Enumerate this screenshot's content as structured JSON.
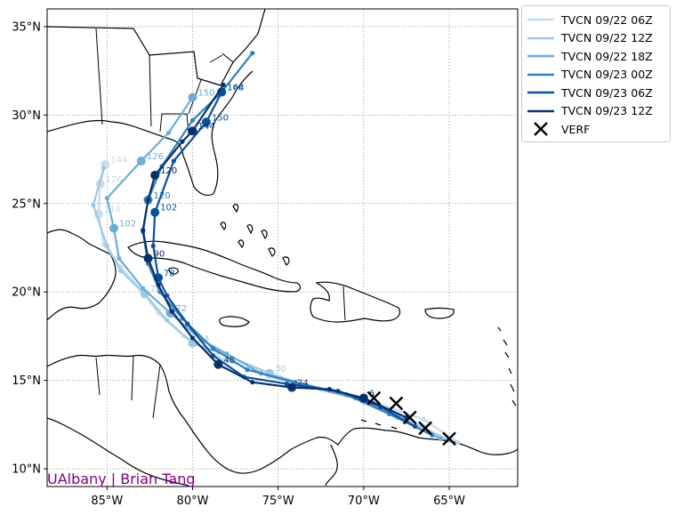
{
  "chart_data": {
    "type": "map-tracks",
    "title": "",
    "xlim": [
      -88.5,
      -61
    ],
    "ylim": [
      9,
      36
    ],
    "x_ticks": [
      -85,
      -80,
      -75,
      -70,
      -65
    ],
    "x_tick_labels": [
      "85°W",
      "80°W",
      "75°W",
      "70°W",
      "65°W"
    ],
    "y_ticks": [
      10,
      15,
      20,
      25,
      30,
      35
    ],
    "y_tick_labels": [
      "10°N",
      "15°N",
      "20°N",
      "25°N",
      "30°N",
      "35°N"
    ],
    "grid": true,
    "legend_position": "outside-top-right",
    "credit": "UAlbany | Brian Tang",
    "series": [
      {
        "name": "TVCN 09/22 06Z",
        "color": "#c6dbef",
        "points": [
          [
            -64.5,
            11.5
          ],
          [
            -66.5,
            12.8
          ],
          [
            -69.5,
            13.8
          ],
          [
            -72.5,
            14.5
          ],
          [
            -75.5,
            15.2
          ],
          [
            -78.5,
            16.3
          ],
          [
            -80.5,
            17.5
          ],
          [
            -82.0,
            18.8
          ],
          [
            -83.0,
            20.1
          ],
          [
            -84.2,
            21.4
          ],
          [
            -85.2,
            22.7
          ],
          [
            -85.5,
            24.4
          ],
          [
            -85.4,
            26.1
          ],
          [
            -85.1,
            27.2
          ]
        ],
        "labels": [
          {
            "idx": 11,
            "text": "114"
          },
          {
            "idx": 12,
            "text": "126"
          },
          {
            "idx": 13,
            "text": "144"
          }
        ]
      },
      {
        "name": "TVCN 09/22 12Z",
        "color": "#9ecae1",
        "points": [
          [
            -65.0,
            11.6
          ],
          [
            -67.5,
            12.8
          ],
          [
            -70.0,
            13.9
          ],
          [
            -73.0,
            14.6
          ],
          [
            -75.5,
            15.4
          ],
          [
            -78.5,
            16.6
          ],
          [
            -80.0,
            17.1
          ],
          [
            -81.5,
            18.4
          ],
          [
            -82.8,
            19.9
          ],
          [
            -84.2,
            21.2
          ],
          [
            -85.0,
            22.6
          ],
          [
            -85.8,
            24.9
          ],
          [
            -85.2,
            27.0
          ]
        ],
        "labels": [
          {
            "idx": 2,
            "text": "6"
          },
          {
            "idx": 4,
            "text": "30"
          },
          {
            "idx": 6,
            "text": "54"
          },
          {
            "idx": 8,
            "text": "78"
          }
        ]
      },
      {
        "name": "TVCN 09/22 18Z",
        "color": "#6baed6",
        "points": [
          [
            -65.5,
            11.7
          ],
          [
            -68.0,
            12.9
          ],
          [
            -70.5,
            14.0
          ],
          [
            -73.5,
            14.7
          ],
          [
            -76.0,
            15.4
          ],
          [
            -78.0,
            16.5
          ],
          [
            -79.5,
            17.3
          ],
          [
            -81.3,
            18.8
          ],
          [
            -82.9,
            20.2
          ],
          [
            -84.3,
            21.9
          ],
          [
            -84.6,
            23.6
          ],
          [
            -85.0,
            25.3
          ],
          [
            -83.0,
            27.4
          ],
          [
            -81.4,
            29.0
          ],
          [
            -80.0,
            31.0
          ]
        ],
        "labels": [
          {
            "idx": 7,
            "text": "72"
          },
          {
            "idx": 10,
            "text": "102"
          },
          {
            "idx": 12,
            "text": "126"
          },
          {
            "idx": 14,
            "text": "150"
          }
        ]
      },
      {
        "name": "TVCN 09/23 00Z",
        "color": "#3182bd",
        "points": [
          [
            -66.0,
            11.9
          ],
          [
            -68.5,
            13.1
          ],
          [
            -71.0,
            14.2
          ],
          [
            -74.0,
            14.9
          ],
          [
            -76.8,
            15.6
          ],
          [
            -78.8,
            16.8
          ],
          [
            -80.6,
            18.5
          ],
          [
            -81.9,
            20.0
          ],
          [
            -82.6,
            21.6
          ],
          [
            -82.9,
            23.4
          ],
          [
            -82.6,
            25.2
          ],
          [
            -81.8,
            27.1
          ],
          [
            -80.0,
            29.7
          ],
          [
            -78.3,
            31.3
          ],
          [
            -76.5,
            33.5
          ]
        ],
        "labels": [
          {
            "idx": 10,
            "text": "120"
          },
          {
            "idx": 13,
            "text": "144"
          }
        ]
      },
      {
        "name": "TVCN 09/23 06Z",
        "color": "#08519c",
        "points": [
          [
            -67.0,
            12.4
          ],
          [
            -69.0,
            13.5
          ],
          [
            -71.5,
            14.4
          ],
          [
            -74.5,
            14.8
          ],
          [
            -77.0,
            15.2
          ],
          [
            -78.8,
            16.4
          ],
          [
            -80.3,
            18.2
          ],
          [
            -81.5,
            19.8
          ],
          [
            -82.0,
            20.8
          ],
          [
            -82.3,
            22.6
          ],
          [
            -82.2,
            24.5
          ],
          [
            -81.1,
            27.4
          ],
          [
            -79.2,
            29.6
          ],
          [
            -78.3,
            31.3
          ]
        ],
        "labels": [
          {
            "idx": 8,
            "text": "78"
          },
          {
            "idx": 10,
            "text": "102"
          },
          {
            "idx": 12,
            "text": "150"
          },
          {
            "idx": 13,
            "text": "168"
          }
        ]
      },
      {
        "name": "TVCN 09/23 12Z",
        "color": "#08306b",
        "points": [
          [
            -67.5,
            12.9
          ],
          [
            -70.0,
            14.0
          ],
          [
            -72.0,
            14.5
          ],
          [
            -74.2,
            14.6
          ],
          [
            -76.5,
            14.9
          ],
          [
            -78.5,
            15.9
          ],
          [
            -80.0,
            17.4
          ],
          [
            -81.2,
            18.9
          ],
          [
            -82.0,
            20.4
          ],
          [
            -82.6,
            21.9
          ],
          [
            -82.9,
            23.5
          ],
          [
            -82.6,
            25.2
          ],
          [
            -82.2,
            26.6
          ],
          [
            -80.6,
            28.5
          ],
          [
            -80.0,
            29.1
          ],
          [
            -78.2,
            31.7
          ]
        ],
        "labels": [
          {
            "idx": 1,
            "text": "6"
          },
          {
            "idx": 3,
            "text": "24"
          },
          {
            "idx": 5,
            "text": "48"
          },
          {
            "idx": 9,
            "text": "90"
          },
          {
            "idx": 12,
            "text": "120"
          },
          {
            "idx": 14,
            "text": "144"
          }
        ]
      },
      {
        "name": "VERF",
        "color": "#000000",
        "marker": "x",
        "points": [
          [
            -65.0,
            11.7
          ],
          [
            -66.4,
            12.3
          ],
          [
            -67.3,
            12.9
          ],
          [
            -68.1,
            13.7
          ],
          [
            -69.4,
            14.0
          ]
        ]
      }
    ]
  }
}
